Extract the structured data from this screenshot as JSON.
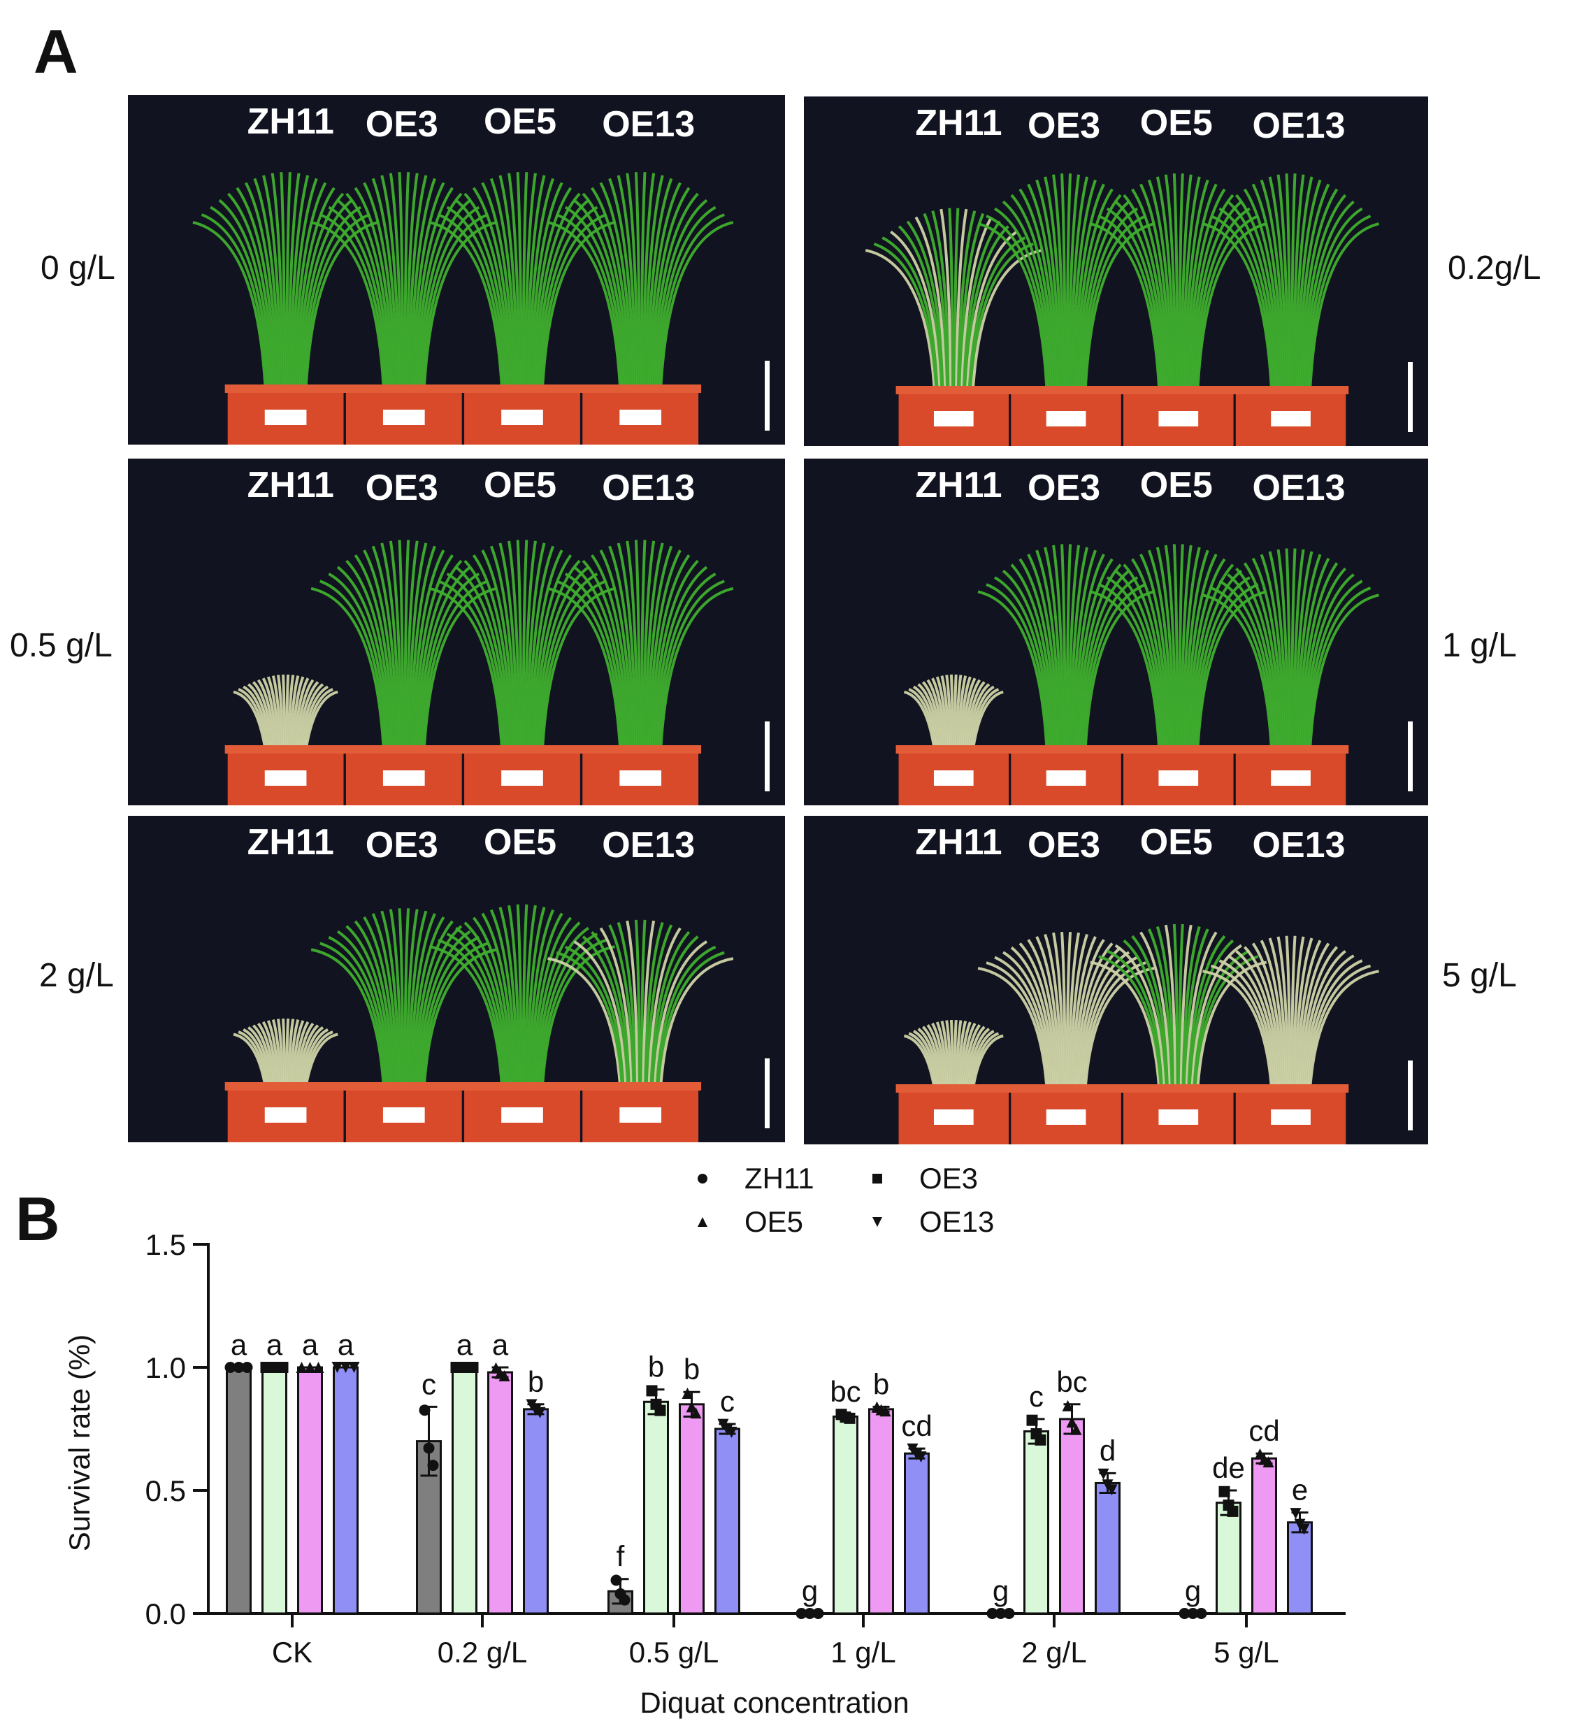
{
  "figure": {
    "panel_a_letter": "A",
    "panel_b_letter": "B",
    "colors": {
      "photo_background": "#111320",
      "pot": "#d94a2b",
      "leaf_healthy": "#3fae2e",
      "leaf_dead": "#cfd3a6",
      "zh11": "#7f7f7f",
      "oe3": "#d9f7d9",
      "oe5": "#ee9af2",
      "oe13": "#8f8ff5"
    }
  },
  "panel_a": {
    "photos": [
      {
        "concentration_label": "0 g/L",
        "genotypes": [
          "ZH11",
          "OE3",
          "OE5",
          "OE13"
        ],
        "side": "left",
        "health": [
          1,
          1,
          1,
          1
        ]
      },
      {
        "concentration_label": "0.2g/L",
        "genotypes": [
          "ZH11",
          "OE3",
          "OE5",
          "OE13"
        ],
        "side": "right",
        "health": [
          0.6,
          1,
          1,
          1
        ]
      },
      {
        "concentration_label": "0.5 g/L",
        "genotypes": [
          "ZH11",
          "OE3",
          "OE5",
          "OE13"
        ],
        "side": "left",
        "health": [
          0,
          0.95,
          0.95,
          0.95
        ]
      },
      {
        "concentration_label": "1 g/L",
        "genotypes": [
          "ZH11",
          "OE3",
          "OE5",
          "OE13"
        ],
        "side": "right",
        "health": [
          0,
          0.9,
          0.9,
          0.85
        ]
      },
      {
        "concentration_label": "2 g/L",
        "genotypes": [
          "ZH11",
          "OE3",
          "OE5",
          "OE13"
        ],
        "side": "left",
        "health": [
          0,
          0.8,
          0.85,
          0.65
        ]
      },
      {
        "concentration_label": "5 g/L",
        "genotypes": [
          "ZH11",
          "OE3",
          "OE5",
          "OE13"
        ],
        "side": "right",
        "health": [
          0,
          0.5,
          0.6,
          0.45
        ]
      }
    ]
  },
  "chart_data": {
    "type": "bar",
    "title": "",
    "xlabel": "Diquat concentration",
    "ylabel": "Survival rate (%)",
    "ylim": [
      0,
      1.5
    ],
    "yticks": [
      "0.0",
      "0.5",
      "1.0",
      "1.5"
    ],
    "categories": [
      "CK",
      "0.2 g/L",
      "0.5 g/L",
      "1 g/L",
      "2 g/L",
      "5 g/L"
    ],
    "legend_position": "top-center",
    "grid": false,
    "series": [
      {
        "name": "ZH11",
        "marker": "circle",
        "color": "#7f7f7f",
        "values": [
          1.0,
          0.7,
          0.09,
          0.0,
          0.0,
          0.0
        ],
        "errors": [
          0.0,
          0.14,
          0.05,
          0.0,
          0.0,
          0.0
        ],
        "letters": [
          "a",
          "c",
          "f",
          "g",
          "g",
          "g"
        ]
      },
      {
        "name": "OE3",
        "marker": "square",
        "color": "#d9f7d9",
        "values": [
          1.0,
          1.0,
          0.86,
          0.8,
          0.74,
          0.45
        ],
        "errors": [
          0.0,
          0.0,
          0.05,
          0.01,
          0.05,
          0.05
        ],
        "letters": [
          "a",
          "a",
          "b",
          "bc",
          "c",
          "de"
        ]
      },
      {
        "name": "OE5",
        "marker": "triangle-up",
        "color": "#ee9af2",
        "values": [
          1.0,
          0.98,
          0.85,
          0.83,
          0.79,
          0.63
        ],
        "errors": [
          0.0,
          0.02,
          0.05,
          0.01,
          0.06,
          0.02
        ],
        "letters": [
          "a",
          "a",
          "b",
          "b",
          "bc",
          "cd"
        ]
      },
      {
        "name": "OE13",
        "marker": "triangle-down",
        "color": "#8f8ff5",
        "values": [
          1.0,
          0.83,
          0.75,
          0.65,
          0.53,
          0.37
        ],
        "errors": [
          0.0,
          0.02,
          0.02,
          0.02,
          0.04,
          0.04
        ],
        "letters": [
          "a",
          "b",
          "c",
          "cd",
          "d",
          "e"
        ]
      }
    ]
  }
}
